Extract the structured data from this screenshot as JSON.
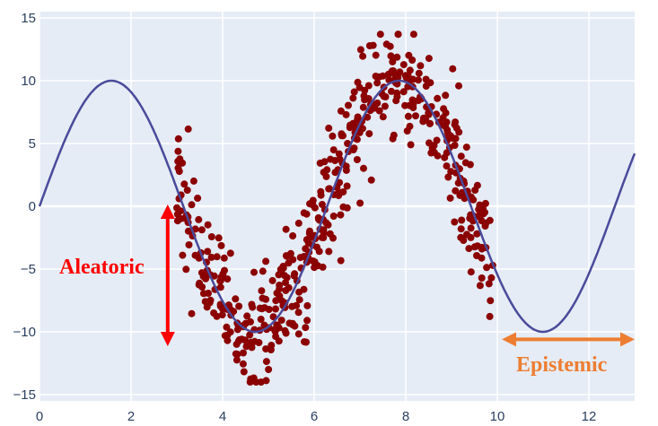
{
  "chart_data": {
    "type": "scatter",
    "xlim": [
      0,
      13
    ],
    "ylim": [
      -15.5,
      15.5
    ],
    "grid": true,
    "x_ticks": [
      0,
      2,
      4,
      6,
      8,
      10,
      12
    ],
    "x_tick_labels": [
      "0",
      "2",
      "4",
      "6",
      "8",
      "10",
      "12"
    ],
    "y_ticks": [
      15,
      10,
      5,
      0,
      -5,
      -10,
      -15
    ],
    "y_tick_labels": [
      "15",
      "10",
      "5",
      "0",
      "−5",
      "−10",
      "−15"
    ],
    "series": [
      {
        "kind": "line",
        "color": "#4a4a9a",
        "function": "10*sin(x)",
        "x_range": [
          0,
          13
        ]
      },
      {
        "kind": "scatter",
        "color": "#8b0000",
        "x_range": [
          3,
          9.95
        ],
        "trend": "10*sin(x)",
        "noise_spread": 3
      }
    ],
    "annotations": [
      {
        "text": "Aleatoric",
        "color": "#ff0000",
        "arrow": "vertical",
        "x": 2.8,
        "y_from": 0,
        "y_to": -11
      },
      {
        "text": "Epistemic",
        "color": "#ed7d31",
        "arrow": "horizontal",
        "y": -10.6,
        "x_from": 10.1,
        "x_to": 13
      }
    ],
    "colors": {
      "plot_background": "#e5ecf6",
      "grid": "#ffffff",
      "tick_text": "#2a3f5f",
      "aleatoric": "#ff0000",
      "epistemic": "#ed7d31"
    }
  }
}
